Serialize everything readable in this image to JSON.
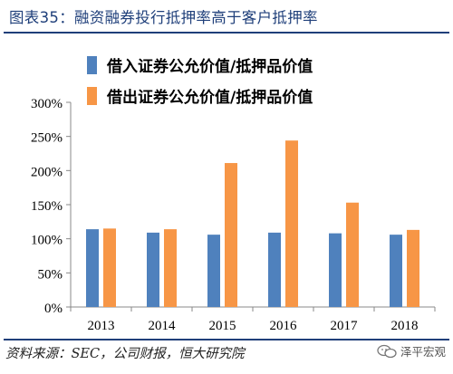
{
  "title": "图表35：融资融券投行抵押率高于客户抵押率",
  "source": "资料来源：SEC，公司财报，恒大研究院",
  "watermark": "泽平宏观",
  "colors": {
    "series1": "#4f81bd",
    "series2": "#f79646",
    "title_blue": "#1f3f7a"
  },
  "chart_data": {
    "type": "bar",
    "categories": [
      "2013",
      "2014",
      "2015",
      "2016",
      "2017",
      "2018"
    ],
    "series": [
      {
        "name": "借入证券公允价值/抵押品价值",
        "values": [
          114,
          109,
          106,
          109,
          108,
          106
        ]
      },
      {
        "name": "借出证券公允价值/抵押品价值",
        "values": [
          115,
          114,
          211,
          244,
          153,
          113
        ]
      }
    ],
    "yticks": [
      "0%",
      "50%",
      "100%",
      "150%",
      "200%",
      "250%",
      "300%"
    ],
    "ylim": [
      0,
      300
    ],
    "legend_position": "top",
    "grid": false
  }
}
